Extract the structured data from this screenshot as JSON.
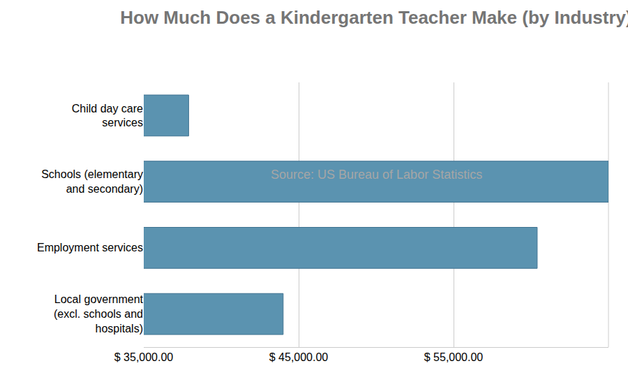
{
  "chart_data": {
    "type": "bar",
    "orientation": "horizontal",
    "title": "How Much Does a Kindergarten Teacher Make (by Industry)",
    "subtitle": "Source: US Bureau of Labor Statistics",
    "categories": [
      "Child day care services",
      "Schools (elementary and secondary)",
      "Employment services",
      "Local government (excl. schools and hospitals)"
    ],
    "values": [
      37900,
      65000,
      60400,
      44000
    ],
    "color": "#5b93b0",
    "xlim": [
      35000,
      65000
    ],
    "xticks": [
      {
        "value": 35000,
        "label": "$ 35,000.00"
      },
      {
        "value": 45000,
        "label": "$ 45,000.00"
      },
      {
        "value": 55000,
        "label": "$ 55,000.00"
      }
    ],
    "grid": true
  }
}
